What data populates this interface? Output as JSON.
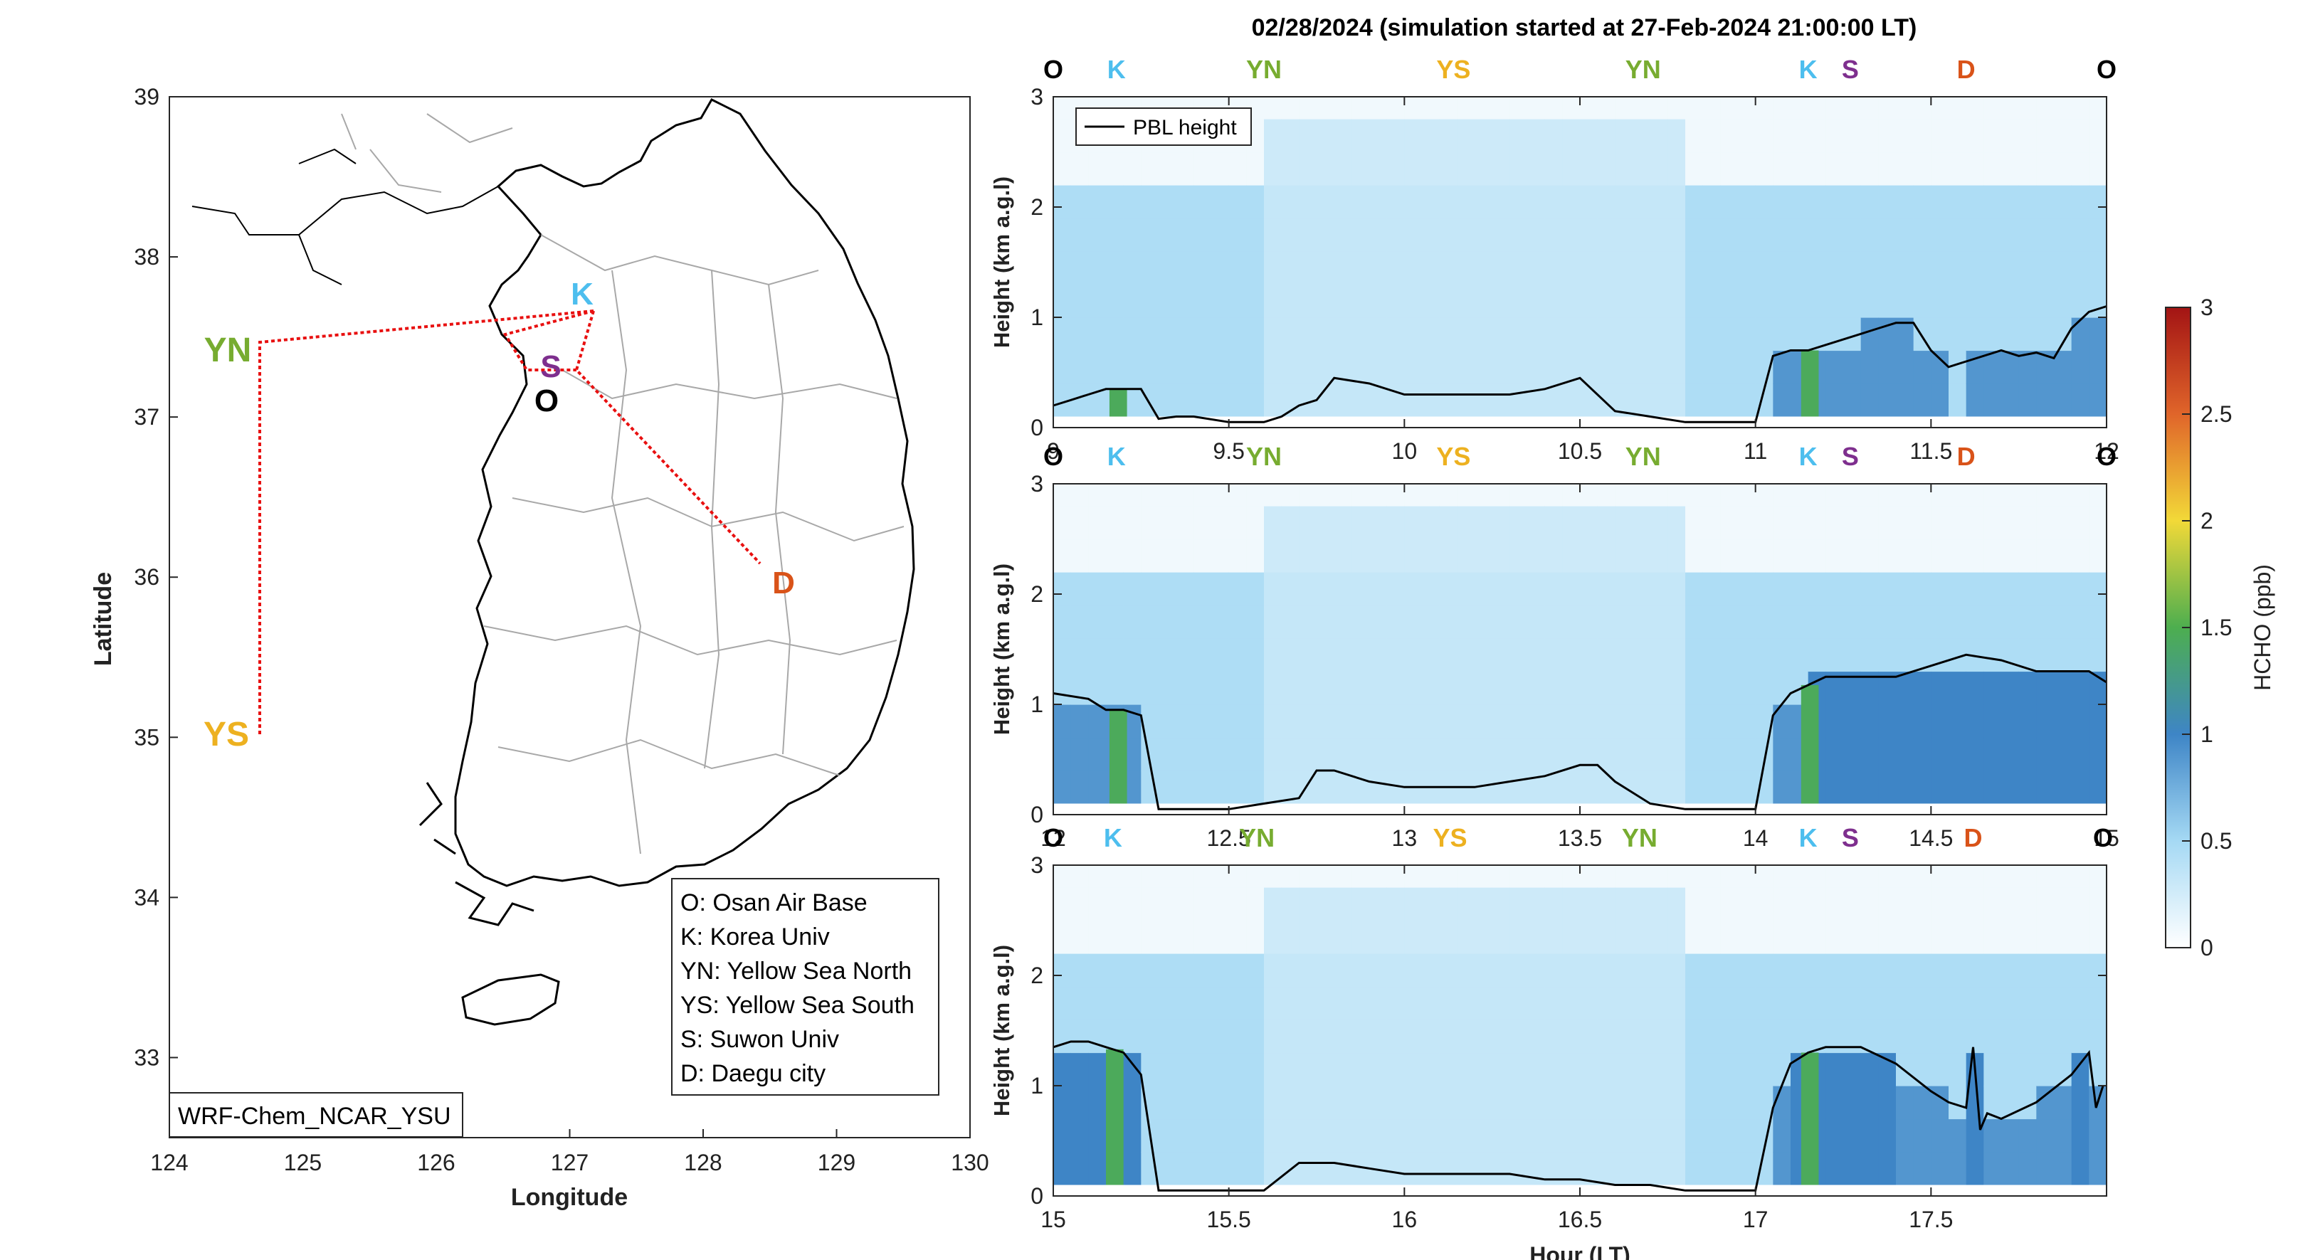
{
  "figure_title": "02/28/2024 (simulation started at 27-Feb-2024 21:00:00 LT)",
  "colors": {
    "O": "#000000",
    "K": "#4DBEEE",
    "YN": "#77AC30",
    "YS": "#EDB120",
    "S": "#7E2F8E",
    "D": "#D95319",
    "route": "#E81010",
    "pbl_line": "#000000"
  },
  "map": {
    "xlabel": "Longitude",
    "ylabel": "Latitude",
    "xlim": [
      124,
      130
    ],
    "ylim": [
      32.5,
      39
    ],
    "xticks": [
      "124",
      "125",
      "126",
      "127",
      "128",
      "129",
      "130"
    ],
    "yticks": [
      "33",
      "34",
      "35",
      "36",
      "37",
      "38",
      "39"
    ],
    "model_label": "WRF-Chem_NCAR_YSU",
    "sites": [
      {
        "code": "K",
        "lon": 127.03,
        "lat": 37.59
      },
      {
        "code": "S",
        "lon": 126.98,
        "lat": 37.29
      },
      {
        "code": "O",
        "lon": 127.03,
        "lat": 37.09
      },
      {
        "code": "D",
        "lon": 128.6,
        "lat": 35.87
      },
      {
        "code": "YN",
        "lon": 124.7,
        "lat": 37.45
      },
      {
        "code": "YS",
        "lon": 124.7,
        "lat": 35.05
      }
    ],
    "legend": [
      "O: Osan Air Base",
      "K: Korea Univ",
      "YN: Yellow Sea North",
      "YS: Yellow Sea South",
      "S: Suwon Univ",
      "D: Daegu city"
    ],
    "route": [
      [
        127.2,
        37.6
      ],
      [
        124.7,
        37.45
      ],
      [
        124.7,
        35.05
      ]
    ],
    "route2": [
      [
        127.2,
        37.6
      ],
      [
        127.0,
        37.15
      ],
      [
        128.45,
        36.05
      ]
    ]
  },
  "chart_data": [
    {
      "type": "heatmap",
      "title": "02/28/2024 (simulation started at 27-Feb-2024 21:00:00 LT)",
      "xlabel": "",
      "ylabel": "Height (km a.g.l)",
      "xlim": [
        9,
        12
      ],
      "ylim": [
        0,
        3
      ],
      "xticks": [
        "9",
        "9.5",
        "10",
        "10.5",
        "11",
        "11.5",
        "12"
      ],
      "yticks": [
        "0",
        "1",
        "2",
        "3"
      ],
      "site_markers": [
        {
          "label": "O",
          "x": 9.0
        },
        {
          "label": "K",
          "x": 9.18
        },
        {
          "label": "YN",
          "x": 9.6
        },
        {
          "label": "YS",
          "x": 10.14
        },
        {
          "label": "YN",
          "x": 10.68
        },
        {
          "label": "K",
          "x": 11.15
        },
        {
          "label": "S",
          "x": 11.27
        },
        {
          "label": "D",
          "x": 11.6
        },
        {
          "label": "O",
          "x": 12.0
        }
      ],
      "legend": [
        "PBL height"
      ],
      "pbl_height": {
        "x": [
          9.0,
          9.05,
          9.1,
          9.15,
          9.2,
          9.25,
          9.3,
          9.35,
          9.4,
          9.5,
          9.6,
          9.65,
          9.7,
          9.75,
          9.8,
          9.9,
          10.0,
          10.1,
          10.2,
          10.3,
          10.4,
          10.5,
          10.6,
          10.7,
          10.8,
          10.9,
          10.95,
          11.0,
          11.05,
          11.1,
          11.15,
          11.2,
          11.3,
          11.35,
          11.4,
          11.45,
          11.5,
          11.55,
          11.6,
          11.7,
          11.75,
          11.8,
          11.85,
          11.9,
          11.95,
          12.0
        ],
        "y": [
          0.2,
          0.25,
          0.3,
          0.35,
          0.35,
          0.35,
          0.08,
          0.1,
          0.1,
          0.05,
          0.05,
          0.1,
          0.2,
          0.25,
          0.45,
          0.4,
          0.3,
          0.3,
          0.3,
          0.3,
          0.35,
          0.45,
          0.15,
          0.1,
          0.05,
          0.05,
          0.05,
          0.05,
          0.65,
          0.7,
          0.7,
          0.75,
          0.85,
          0.9,
          0.95,
          0.95,
          0.7,
          0.55,
          0.6,
          0.7,
          0.65,
          0.68,
          0.63,
          0.9,
          1.05,
          1.1
        ]
      }
    },
    {
      "type": "heatmap",
      "xlabel": "",
      "ylabel": "Height (km a.g.l)",
      "xlim": [
        12,
        15
      ],
      "ylim": [
        0,
        3
      ],
      "xticks": [
        "12",
        "12.5",
        "13",
        "13.5",
        "14",
        "14.5",
        "15"
      ],
      "yticks": [
        "0",
        "1",
        "2",
        "3"
      ],
      "site_markers": [
        {
          "label": "O",
          "x": 12.0
        },
        {
          "label": "K",
          "x": 12.18
        },
        {
          "label": "YN",
          "x": 12.6
        },
        {
          "label": "YS",
          "x": 13.14
        },
        {
          "label": "YN",
          "x": 13.68
        },
        {
          "label": "K",
          "x": 14.15
        },
        {
          "label": "S",
          "x": 14.27
        },
        {
          "label": "D",
          "x": 14.6
        },
        {
          "label": "O",
          "x": 15.0
        }
      ],
      "pbl_height": {
        "x": [
          12.0,
          12.1,
          12.15,
          12.2,
          12.25,
          12.3,
          12.4,
          12.5,
          12.6,
          12.7,
          12.75,
          12.8,
          12.9,
          13.0,
          13.1,
          13.2,
          13.3,
          13.4,
          13.5,
          13.55,
          13.6,
          13.7,
          13.8,
          13.9,
          14.0,
          14.05,
          14.1,
          14.2,
          14.3,
          14.4,
          14.5,
          14.6,
          14.7,
          14.8,
          14.9,
          14.95,
          15.0
        ],
        "y": [
          1.1,
          1.05,
          0.95,
          0.95,
          0.9,
          0.05,
          0.05,
          0.05,
          0.1,
          0.15,
          0.4,
          0.4,
          0.3,
          0.25,
          0.25,
          0.25,
          0.3,
          0.35,
          0.45,
          0.45,
          0.3,
          0.1,
          0.05,
          0.05,
          0.05,
          0.9,
          1.1,
          1.25,
          1.25,
          1.25,
          1.35,
          1.45,
          1.4,
          1.3,
          1.3,
          1.3,
          1.2
        ]
      }
    },
    {
      "type": "heatmap",
      "xlabel": "Hour (LT)",
      "ylabel": "Height (km a.g.l)",
      "xlim": [
        15,
        18
      ],
      "ylim": [
        0,
        3
      ],
      "xticks": [
        "15",
        "15.5",
        "16",
        "16.5",
        "17",
        "17.5"
      ],
      "yticks": [
        "0",
        "1",
        "2",
        "3"
      ],
      "site_markers": [
        {
          "label": "O",
          "x": 15.0
        },
        {
          "label": "K",
          "x": 15.17
        },
        {
          "label": "YN",
          "x": 15.58
        },
        {
          "label": "YS",
          "x": 16.13
        },
        {
          "label": "YN",
          "x": 16.67
        },
        {
          "label": "K",
          "x": 17.15
        },
        {
          "label": "S",
          "x": 17.27
        },
        {
          "label": "D",
          "x": 17.62
        },
        {
          "label": "O",
          "x": 17.99
        }
      ],
      "pbl_height": {
        "x": [
          15.0,
          15.05,
          15.1,
          15.15,
          15.2,
          15.25,
          15.3,
          15.4,
          15.5,
          15.6,
          15.7,
          15.8,
          15.9,
          16.0,
          16.1,
          16.2,
          16.3,
          16.4,
          16.5,
          16.6,
          16.7,
          16.8,
          16.9,
          17.0,
          17.05,
          17.1,
          17.15,
          17.2,
          17.3,
          17.4,
          17.5,
          17.55,
          17.6,
          17.62,
          17.64,
          17.66,
          17.7,
          17.8,
          17.9,
          17.95,
          17.97,
          17.99
        ],
        "y": [
          1.35,
          1.4,
          1.4,
          1.35,
          1.3,
          1.1,
          0.05,
          0.05,
          0.05,
          0.05,
          0.3,
          0.3,
          0.25,
          0.2,
          0.2,
          0.2,
          0.2,
          0.15,
          0.15,
          0.1,
          0.1,
          0.05,
          0.05,
          0.05,
          0.8,
          1.2,
          1.3,
          1.35,
          1.35,
          1.2,
          0.95,
          0.85,
          0.8,
          1.35,
          0.6,
          0.75,
          0.7,
          0.85,
          1.1,
          1.3,
          0.8,
          1.0
        ]
      }
    }
  ],
  "colorbar": {
    "label": "HCHO (ppb)",
    "range": [
      0,
      3
    ],
    "ticks": [
      "0",
      "0.5",
      "1",
      "1.5",
      "2",
      "2.5",
      "3"
    ]
  }
}
